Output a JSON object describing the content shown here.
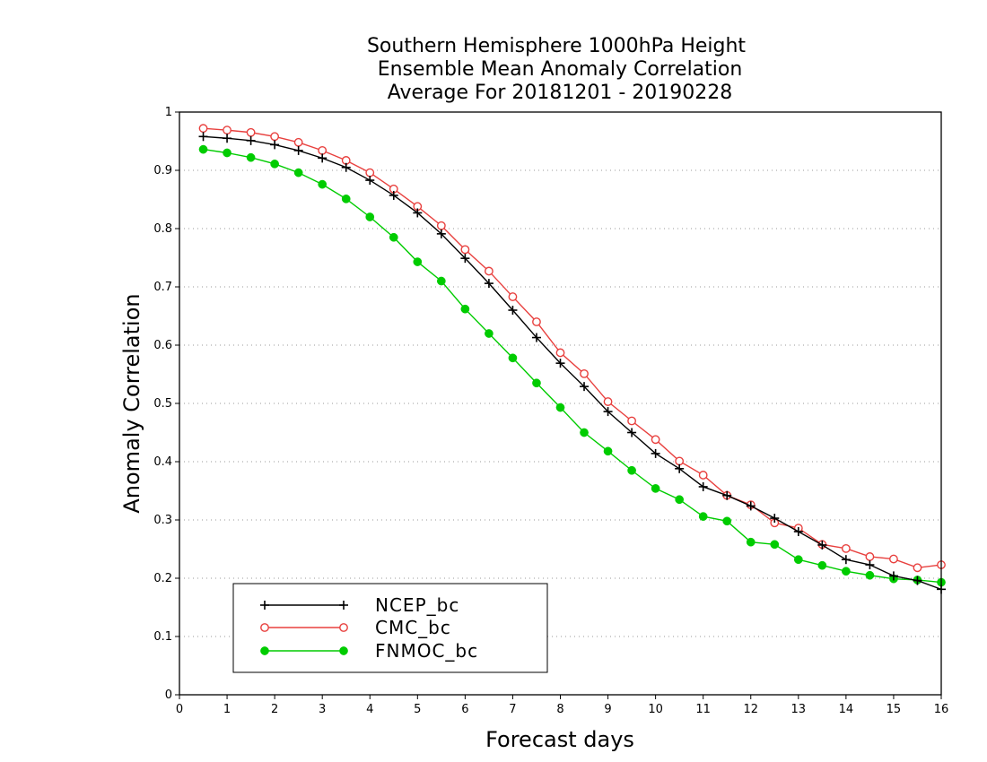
{
  "chart_data": {
    "type": "line",
    "title": [
      "Southern Hemisphere 1000hPa Height",
      "Ensemble Mean Anomaly Correlation",
      "Average For 20181201 - 20190228"
    ],
    "xlabel": "Forecast days",
    "ylabel": "Anomaly Correlation",
    "xlim": [
      0,
      16
    ],
    "ylim": [
      0,
      1
    ],
    "xticks": [
      0,
      1,
      2,
      3,
      4,
      5,
      6,
      7,
      8,
      9,
      10,
      11,
      12,
      13,
      14,
      15,
      16
    ],
    "yticks": [
      0,
      0.1,
      0.2,
      0.3,
      0.4,
      0.5,
      0.6,
      0.7,
      0.8,
      0.9,
      1
    ],
    "ytick_labels": [
      "0",
      "0.1",
      "0.2",
      "0.3",
      "0.4",
      "0.5",
      "0.6",
      "0.7",
      "0.8",
      "0.9",
      "1"
    ],
    "grid": "horizontal dotted",
    "legend_position": "bottom-left",
    "x": [
      0.5,
      1,
      1.5,
      2,
      2.5,
      3,
      3.5,
      4,
      4.5,
      5,
      5.5,
      6,
      6.5,
      7,
      7.5,
      8,
      8.5,
      9,
      9.5,
      10,
      10.5,
      11,
      11.5,
      12,
      12.5,
      13,
      13.5,
      14,
      14.5,
      15,
      15.5,
      16
    ],
    "series": [
      {
        "name": "NCEP_bc",
        "color": "#000000",
        "marker": "plus",
        "values": [
          0.958,
          0.955,
          0.951,
          0.944,
          0.934,
          0.921,
          0.905,
          0.883,
          0.857,
          0.827,
          0.791,
          0.749,
          0.706,
          0.66,
          0.613,
          0.569,
          0.529,
          0.486,
          0.45,
          0.414,
          0.388,
          0.357,
          0.342,
          0.324,
          0.303,
          0.28,
          0.257,
          0.232,
          0.223,
          0.204,
          0.196,
          0.181
        ]
      },
      {
        "name": "CMC_bc",
        "color": "#e8403e",
        "marker": "open-circle",
        "values": [
          0.972,
          0.969,
          0.965,
          0.958,
          0.948,
          0.934,
          0.917,
          0.896,
          0.868,
          0.838,
          0.805,
          0.764,
          0.727,
          0.683,
          0.64,
          0.587,
          0.551,
          0.503,
          0.47,
          0.438,
          0.401,
          0.377,
          0.342,
          0.326,
          0.295,
          0.286,
          0.258,
          0.251,
          0.237,
          0.233,
          0.218,
          0.223
        ]
      },
      {
        "name": "FNMOC_bc",
        "color": "#00cc00",
        "marker": "filled-circle",
        "values": [
          0.936,
          0.93,
          0.922,
          0.911,
          0.896,
          0.876,
          0.851,
          0.82,
          0.785,
          0.743,
          0.71,
          0.662,
          0.62,
          0.578,
          0.535,
          0.493,
          0.45,
          0.418,
          0.385,
          0.354,
          0.335,
          0.306,
          0.298,
          0.262,
          0.258,
          0.232,
          0.222,
          0.212,
          0.205,
          0.199,
          0.197,
          0.193
        ]
      }
    ]
  }
}
